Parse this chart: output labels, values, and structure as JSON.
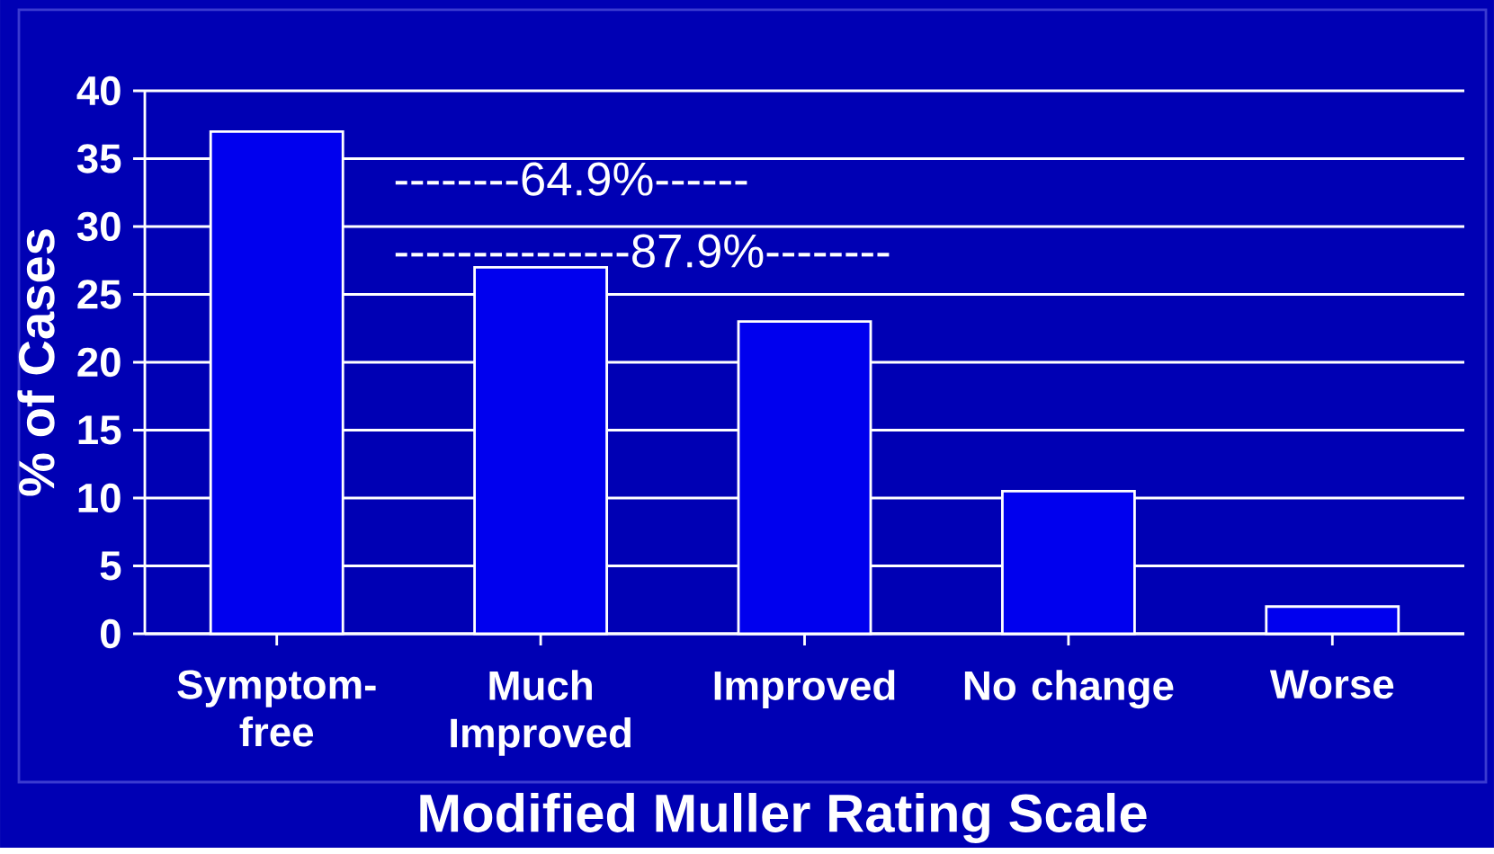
{
  "chart_data": {
    "type": "bar",
    "categories": [
      "Symptom-free",
      "Much Improved",
      "Improved",
      "No change",
      "Worse"
    ],
    "values": [
      37,
      27,
      23,
      10.5,
      2
    ],
    "color": "#0000ee",
    "ylim": [
      0,
      40
    ],
    "yticks": [
      0,
      5,
      10,
      15,
      20,
      25,
      30,
      35,
      40
    ],
    "grid": "y",
    "xlabel": "Modified Muller Rating Scale",
    "ylabel": "% of Cases",
    "annotations": [
      "--------64.9%------",
      "---------------87.9%--------"
    ]
  }
}
